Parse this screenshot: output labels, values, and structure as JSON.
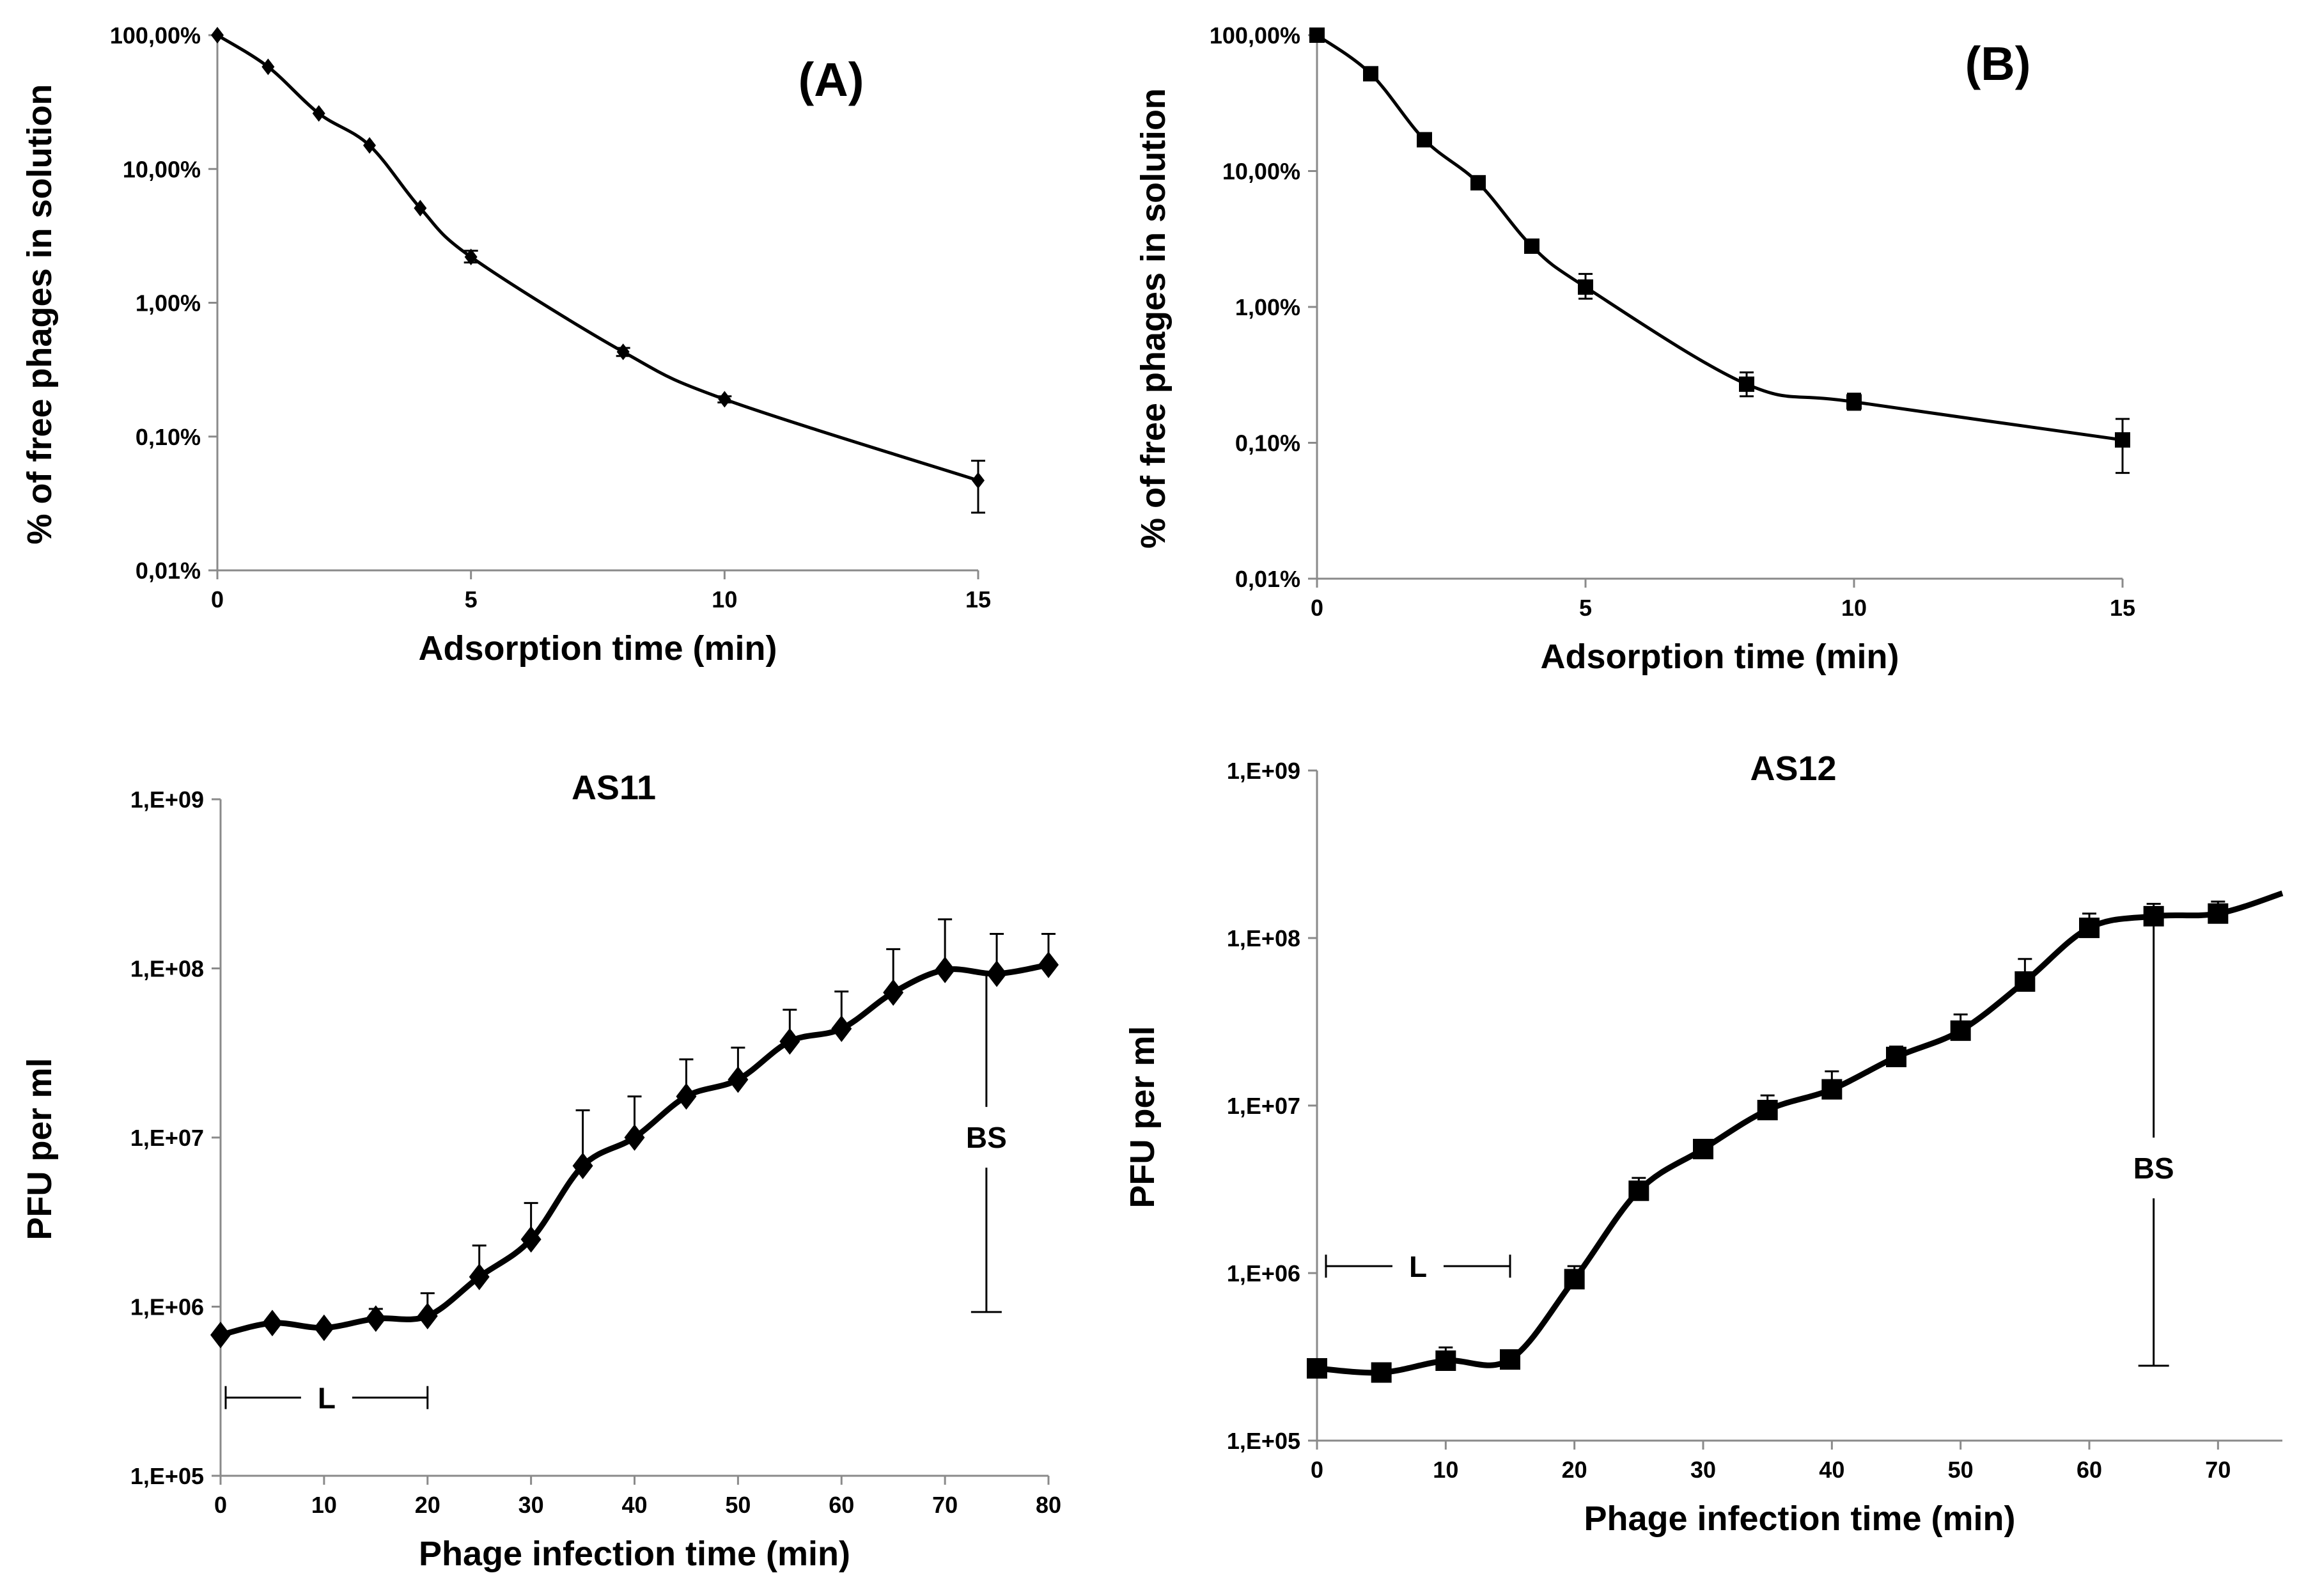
{
  "chart_data": [
    {
      "id": "A",
      "type": "line",
      "scale": "log",
      "panel_label": "(A)",
      "title": "",
      "xlabel": "Adsorption time (min)",
      "ylabel": "% of free phages in solution",
      "xlim": [
        0,
        15
      ],
      "ylim": [
        0.01,
        100
      ],
      "x_ticks": [
        0,
        5,
        10,
        15
      ],
      "x_tick_labels": [
        "0",
        "5",
        "10",
        "15"
      ],
      "y_ticks": [
        100,
        10,
        1,
        0.1,
        0.01
      ],
      "y_tick_labels": [
        "100,00%",
        "10,00%",
        "1,00%",
        "0,10%",
        "0,01%"
      ],
      "marker": "diamond",
      "x": [
        0,
        1,
        2,
        3,
        4,
        5,
        8,
        10,
        15
      ],
      "y": [
        100,
        58,
        26,
        15,
        5.1,
        2.2,
        0.43,
        0.19,
        0.047
      ],
      "err_up": [
        100,
        58,
        26,
        15,
        5.1,
        2.45,
        0.46,
        0.2,
        0.066
      ],
      "err_down": [
        100,
        58,
        26,
        15,
        5.1,
        2.0,
        0.4,
        0.18,
        0.027
      ],
      "annotations": []
    },
    {
      "id": "B",
      "type": "line",
      "scale": "log",
      "panel_label": "(B)",
      "title": "",
      "xlabel": "Adsorption time (min)",
      "ylabel": "% of free phages in solution",
      "xlim": [
        0,
        15
      ],
      "ylim": [
        0.01,
        100
      ],
      "x_ticks": [
        0,
        5,
        10,
        15
      ],
      "x_tick_labels": [
        "0",
        "5",
        "10",
        "15"
      ],
      "y_ticks": [
        100,
        10,
        1,
        0.1,
        0.01
      ],
      "y_tick_labels": [
        "100,00%",
        "10,00%",
        "1,00%",
        "0,10%",
        "0,01%"
      ],
      "marker": "square",
      "x": [
        0,
        1,
        2,
        3,
        4,
        5,
        8,
        10,
        15
      ],
      "y": [
        100,
        52,
        17,
        8.2,
        2.8,
        1.4,
        0.27,
        0.2,
        0.105
      ],
      "err_up": [
        100,
        52,
        17,
        8.8,
        2.8,
        1.75,
        0.33,
        0.23,
        0.15
      ],
      "err_down": [
        100,
        52,
        17,
        7.5,
        2.8,
        1.15,
        0.22,
        0.175,
        0.06
      ],
      "annotations": []
    },
    {
      "id": "AS11",
      "type": "line",
      "scale": "log",
      "panel_label": "",
      "title": "AS11",
      "xlabel": "Phage infection time (min)",
      "ylabel": "PFU per ml",
      "xlim": [
        0,
        80
      ],
      "ylim": [
        100000,
        1000000000
      ],
      "x_ticks": [
        0,
        10,
        20,
        30,
        40,
        50,
        60,
        70,
        80
      ],
      "x_tick_labels": [
        "0",
        "10",
        "20",
        "30",
        "40",
        "50",
        "60",
        "70",
        "80"
      ],
      "y_ticks": [
        1000000000,
        100000000,
        10000000,
        1000000,
        100000
      ],
      "y_tick_labels": [
        "1,E+09",
        "1,E+08",
        "1,E+07",
        "1,E+06",
        "1,E+05"
      ],
      "marker": "diamond",
      "x": [
        0,
        5,
        10,
        15,
        20,
        25,
        30,
        35,
        40,
        45,
        50,
        55,
        60,
        65,
        70,
        75,
        80
      ],
      "y": [
        680000,
        800000,
        750000,
        850000,
        880000,
        1500000,
        2500000,
        6800000,
        10000000,
        17500000,
        22000000,
        37000000,
        44000000,
        72000000,
        98000000,
        93000000,
        105000000
      ],
      "err_up": [
        680000,
        800000,
        750000,
        970000,
        1200000,
        2300000,
        4100000,
        14500000,
        17500000,
        29000000,
        34000000,
        57000000,
        73000000,
        130000000,
        195000000,
        160000000,
        160000000
      ],
      "err_down": [
        680000,
        800000,
        750000,
        850000,
        880000,
        1500000,
        2500000,
        6800000,
        10000000,
        17500000,
        22000000,
        37000000,
        44000000,
        72000000,
        98000000,
        93000000,
        105000000
      ],
      "annotations": [
        {
          "text": "L",
          "type": "range",
          "from": 0,
          "to": 20,
          "y": 290000
        },
        {
          "text": "BS",
          "type": "burst",
          "x": 74,
          "from": 93000000,
          "to": 930000,
          "label_y": 9000000
        }
      ]
    },
    {
      "id": "AS12",
      "type": "line",
      "scale": "log",
      "panel_label": "",
      "title": "AS12",
      "xlabel": "Phage infection time (min)",
      "ylabel": "PFU per ml",
      "xlim": [
        0,
        75
      ],
      "ylim": [
        100000,
        1000000000
      ],
      "x_ticks": [
        0,
        10,
        20,
        30,
        40,
        50,
        60,
        70
      ],
      "x_tick_labels": [
        "0",
        "10",
        "20",
        "30",
        "40",
        "50",
        "60",
        "70"
      ],
      "y_ticks": [
        1000000000,
        100000000,
        10000000,
        1000000,
        100000
      ],
      "y_tick_labels": [
        "1,E+09",
        "1,E+08",
        "1,E+07",
        "1,E+06",
        "1,E+05"
      ],
      "marker": "square",
      "x": [
        0,
        5,
        10,
        15,
        20,
        25,
        30,
        35,
        40,
        45,
        50,
        55,
        60,
        65,
        70
      ],
      "y": [
        270000,
        255000,
        300000,
        305000,
        920000,
        3100000,
        5500000,
        9400000,
        12500000,
        19500000,
        28000000,
        55000000,
        115000000,
        135000000,
        140000000
      ],
      "err_up": [
        270000,
        255000,
        360000,
        305000,
        1100000,
        3700000,
        5500000,
        11500000,
        16000000,
        22500000,
        35000000,
        75000000,
        140000000,
        160000000,
        165000000
      ],
      "err_down": [
        270000,
        255000,
        300000,
        305000,
        920000,
        3100000,
        5500000,
        9400000,
        12500000,
        19500000,
        28000000,
        55000000,
        115000000,
        135000000,
        140000000
      ],
      "line_extends_to": {
        "x": 75,
        "y": 185000000
      },
      "annotations": [
        {
          "text": "L",
          "type": "range",
          "from": 0,
          "to": 15,
          "y": 1100000
        },
        {
          "text": "BS",
          "type": "burst",
          "x": 65,
          "from": 135000000,
          "to": 280000,
          "label_y": 3800000
        }
      ]
    }
  ]
}
